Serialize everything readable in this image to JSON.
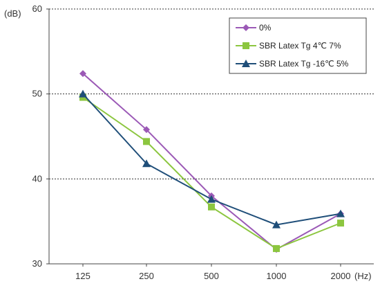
{
  "chart_data": {
    "type": "line",
    "x_unit": "(Hz)",
    "y_unit": "(dB)",
    "categories": [
      "125",
      "250",
      "500",
      "1000",
      "2000"
    ],
    "yticks": [
      "30",
      "40",
      "50",
      "60"
    ],
    "ylim": [
      30,
      60
    ],
    "grid": "horizontal dashed at 40, 50 and 60",
    "legend_position": "top-right",
    "series": [
      {
        "name": "0%",
        "values": [
          52.4,
          45.8,
          38.0,
          31.7,
          35.9
        ],
        "color": "#9B59B6",
        "marker": "diamond"
      },
      {
        "name": "SBR Latex Tg 4℃ 7%",
        "values": [
          49.6,
          44.4,
          36.7,
          31.8,
          34.8
        ],
        "color": "#8CC63F",
        "marker": "square"
      },
      {
        "name": "SBR Latex Tg -16℃ 5%",
        "values": [
          50.0,
          41.8,
          37.6,
          34.6,
          35.9
        ],
        "color": "#1F4E79",
        "marker": "triangle"
      }
    ]
  }
}
